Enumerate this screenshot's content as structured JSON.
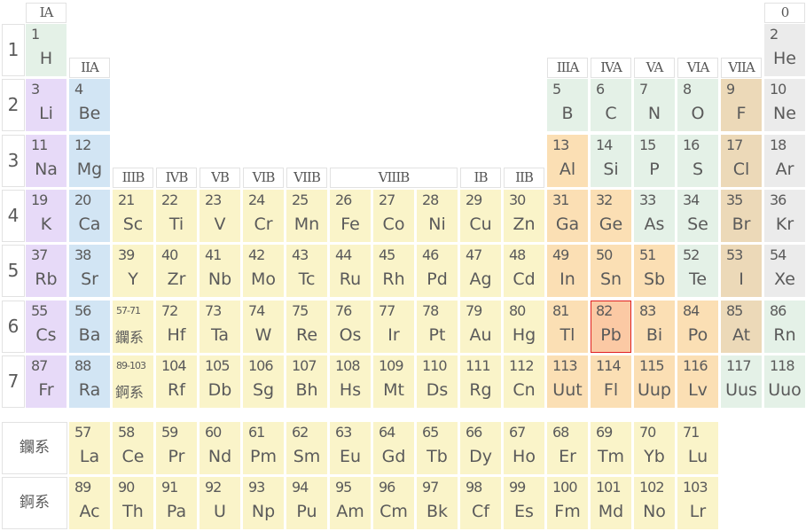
{
  "categories": {
    "alkali": "#e7daf8",
    "alkaline": "#d2e5f4",
    "transition": "#faf4c9",
    "post": "#fbdfb4",
    "nonmetal": "#e4f1e7",
    "halogen": "#ecd9b8",
    "noble": "#ebebeb",
    "highlight": "#fbc9a4"
  },
  "highlighted_element": 82,
  "periods": [
    "1",
    "2",
    "3",
    "4",
    "5",
    "6",
    "7"
  ],
  "groups": [
    {
      "label": "IA",
      "col": 1,
      "row": "top"
    },
    {
      "label": "IIA",
      "col": 2,
      "row": "a"
    },
    {
      "label": "IIIB",
      "col": 3,
      "row": "b"
    },
    {
      "label": "IVB",
      "col": 4,
      "row": "b"
    },
    {
      "label": "VB",
      "col": 5,
      "row": "b"
    },
    {
      "label": "VIB",
      "col": 6,
      "row": "b"
    },
    {
      "label": "VIIB",
      "col": 7,
      "row": "b"
    },
    {
      "label": "VIIIB",
      "col": 8,
      "span": 3,
      "row": "b"
    },
    {
      "label": "IB",
      "col": 11,
      "row": "b"
    },
    {
      "label": "IIB",
      "col": 12,
      "row": "b"
    },
    {
      "label": "IIIA",
      "col": 13,
      "row": "a"
    },
    {
      "label": "IVA",
      "col": 14,
      "row": "a"
    },
    {
      "label": "VA",
      "col": 15,
      "row": "a"
    },
    {
      "label": "VIA",
      "col": 16,
      "row": "a"
    },
    {
      "label": "VIIA",
      "col": 17,
      "row": "a"
    },
    {
      "label": "0",
      "col": 18,
      "row": "top"
    }
  ],
  "series_placeholders": [
    {
      "range": "57-71",
      "label": "鑭系",
      "period": 6
    },
    {
      "range": "89-103",
      "label": "錒系",
      "period": 7
    }
  ],
  "series_rows": [
    {
      "label": "鑭系",
      "start": 57
    },
    {
      "label": "錒系",
      "start": 89
    }
  ],
  "elements": [
    [
      1,
      "H",
      1,
      1,
      "nonmetal"
    ],
    [
      2,
      "He",
      1,
      18,
      "noble"
    ],
    [
      3,
      "Li",
      2,
      1,
      "alkali"
    ],
    [
      4,
      "Be",
      2,
      2,
      "alkaline"
    ],
    [
      5,
      "B",
      2,
      13,
      "nonmetal"
    ],
    [
      6,
      "C",
      2,
      14,
      "nonmetal"
    ],
    [
      7,
      "N",
      2,
      15,
      "nonmetal"
    ],
    [
      8,
      "O",
      2,
      16,
      "nonmetal"
    ],
    [
      9,
      "F",
      2,
      17,
      "halogen"
    ],
    [
      10,
      "Ne",
      2,
      18,
      "noble"
    ],
    [
      11,
      "Na",
      3,
      1,
      "alkali"
    ],
    [
      12,
      "Mg",
      3,
      2,
      "alkaline"
    ],
    [
      13,
      "Al",
      3,
      13,
      "post"
    ],
    [
      14,
      "Si",
      3,
      14,
      "nonmetal"
    ],
    [
      15,
      "P",
      3,
      15,
      "nonmetal"
    ],
    [
      16,
      "S",
      3,
      16,
      "nonmetal"
    ],
    [
      17,
      "Cl",
      3,
      17,
      "halogen"
    ],
    [
      18,
      "Ar",
      3,
      18,
      "noble"
    ],
    [
      19,
      "K",
      4,
      1,
      "alkali"
    ],
    [
      20,
      "Ca",
      4,
      2,
      "alkaline"
    ],
    [
      21,
      "Sc",
      4,
      3,
      "transition"
    ],
    [
      22,
      "Ti",
      4,
      4,
      "transition"
    ],
    [
      23,
      "V",
      4,
      5,
      "transition"
    ],
    [
      24,
      "Cr",
      4,
      6,
      "transition"
    ],
    [
      25,
      "Mn",
      4,
      7,
      "transition"
    ],
    [
      26,
      "Fe",
      4,
      8,
      "transition"
    ],
    [
      27,
      "Co",
      4,
      9,
      "transition"
    ],
    [
      28,
      "Ni",
      4,
      10,
      "transition"
    ],
    [
      29,
      "Cu",
      4,
      11,
      "transition"
    ],
    [
      30,
      "Zn",
      4,
      12,
      "transition"
    ],
    [
      31,
      "Ga",
      4,
      13,
      "post"
    ],
    [
      32,
      "Ge",
      4,
      14,
      "post"
    ],
    [
      33,
      "As",
      4,
      15,
      "nonmetal"
    ],
    [
      34,
      "Se",
      4,
      16,
      "nonmetal"
    ],
    [
      35,
      "Br",
      4,
      17,
      "halogen"
    ],
    [
      36,
      "Kr",
      4,
      18,
      "noble"
    ],
    [
      37,
      "Rb",
      5,
      1,
      "alkali"
    ],
    [
      38,
      "Sr",
      5,
      2,
      "alkaline"
    ],
    [
      39,
      "Y",
      5,
      3,
      "transition"
    ],
    [
      40,
      "Zr",
      5,
      4,
      "transition"
    ],
    [
      41,
      "Nb",
      5,
      5,
      "transition"
    ],
    [
      42,
      "Mo",
      5,
      6,
      "transition"
    ],
    [
      43,
      "Tc",
      5,
      7,
      "transition"
    ],
    [
      44,
      "Ru",
      5,
      8,
      "transition"
    ],
    [
      45,
      "Rh",
      5,
      9,
      "transition"
    ],
    [
      46,
      "Pd",
      5,
      10,
      "transition"
    ],
    [
      47,
      "Ag",
      5,
      11,
      "transition"
    ],
    [
      48,
      "Cd",
      5,
      12,
      "transition"
    ],
    [
      49,
      "In",
      5,
      13,
      "post"
    ],
    [
      50,
      "Sn",
      5,
      14,
      "post"
    ],
    [
      51,
      "Sb",
      5,
      15,
      "post"
    ],
    [
      52,
      "Te",
      5,
      16,
      "nonmetal"
    ],
    [
      53,
      "I",
      5,
      17,
      "halogen"
    ],
    [
      54,
      "Xe",
      5,
      18,
      "noble"
    ],
    [
      55,
      "Cs",
      6,
      1,
      "alkali"
    ],
    [
      56,
      "Ba",
      6,
      2,
      "alkaline"
    ],
    [
      72,
      "Hf",
      6,
      4,
      "transition"
    ],
    [
      73,
      "Ta",
      6,
      5,
      "transition"
    ],
    [
      74,
      "W",
      6,
      6,
      "transition"
    ],
    [
      75,
      "Re",
      6,
      7,
      "transition"
    ],
    [
      76,
      "Os",
      6,
      8,
      "transition"
    ],
    [
      77,
      "Ir",
      6,
      9,
      "transition"
    ],
    [
      78,
      "Pt",
      6,
      10,
      "transition"
    ],
    [
      79,
      "Au",
      6,
      11,
      "transition"
    ],
    [
      80,
      "Hg",
      6,
      12,
      "transition"
    ],
    [
      81,
      "Tl",
      6,
      13,
      "post"
    ],
    [
      82,
      "Pb",
      6,
      14,
      "post"
    ],
    [
      83,
      "Bi",
      6,
      15,
      "post"
    ],
    [
      84,
      "Po",
      6,
      16,
      "post"
    ],
    [
      85,
      "At",
      6,
      17,
      "halogen"
    ],
    [
      86,
      "Rn",
      6,
      18,
      "nonmetal"
    ],
    [
      87,
      "Fr",
      7,
      1,
      "alkali"
    ],
    [
      88,
      "Ra",
      7,
      2,
      "alkaline"
    ],
    [
      104,
      "Rf",
      7,
      4,
      "transition"
    ],
    [
      105,
      "Db",
      7,
      5,
      "transition"
    ],
    [
      106,
      "Sg",
      7,
      6,
      "transition"
    ],
    [
      107,
      "Bh",
      7,
      7,
      "transition"
    ],
    [
      108,
      "Hs",
      7,
      8,
      "transition"
    ],
    [
      109,
      "Mt",
      7,
      9,
      "transition"
    ],
    [
      110,
      "Ds",
      7,
      10,
      "transition"
    ],
    [
      111,
      "Rg",
      7,
      11,
      "transition"
    ],
    [
      112,
      "Cn",
      7,
      12,
      "transition"
    ],
    [
      113,
      "Uut",
      7,
      13,
      "post"
    ],
    [
      114,
      "Fl",
      7,
      14,
      "post"
    ],
    [
      115,
      "Uup",
      7,
      15,
      "post"
    ],
    [
      116,
      "Lv",
      7,
      16,
      "post"
    ],
    [
      117,
      "Uus",
      7,
      17,
      "nonmetal"
    ],
    [
      118,
      "Uuo",
      7,
      18,
      "nonmetal"
    ]
  ],
  "lanthanides": [
    "La",
    "Ce",
    "Pr",
    "Nd",
    "Pm",
    "Sm",
    "Eu",
    "Gd",
    "Tb",
    "Dy",
    "Ho",
    "Er",
    "Tm",
    "Yb",
    "Lu"
  ],
  "actinides": [
    "Ac",
    "Th",
    "Pa",
    "U",
    "Np",
    "Pu",
    "Am",
    "Cm",
    "Bk",
    "Cf",
    "Es",
    "Fm",
    "Md",
    "No",
    "Lr"
  ]
}
